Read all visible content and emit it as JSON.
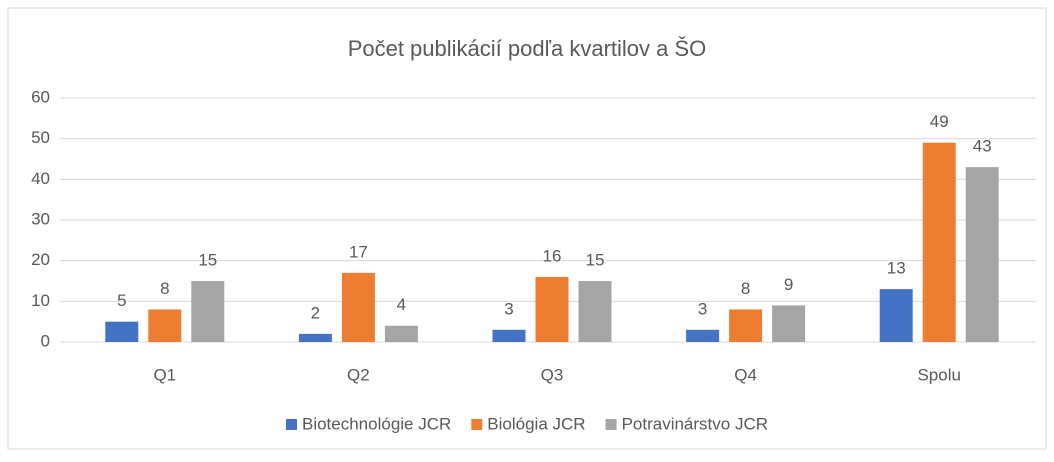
{
  "chart_data": {
    "type": "bar",
    "title": "Počet publikácií  podľa kvartilov a ŠO",
    "categories": [
      "Q1",
      "Q2",
      "Q3",
      "Q4",
      "Spolu"
    ],
    "series": [
      {
        "name": "Biotechnológie JCR",
        "color": "#4472c4",
        "values": [
          5,
          2,
          3,
          3,
          13
        ]
      },
      {
        "name": "Biológia JCR",
        "color": "#ed7d31",
        "values": [
          8,
          17,
          16,
          8,
          49
        ]
      },
      {
        "name": "Potravinárstvo JCR",
        "color": "#a5a5a5",
        "values": [
          15,
          4,
          15,
          9,
          43
        ]
      }
    ],
    "ylim": [
      0,
      60
    ],
    "yticks": [
      0,
      10,
      20,
      30,
      40,
      50,
      60
    ],
    "grid": true,
    "legend": "bottom"
  }
}
